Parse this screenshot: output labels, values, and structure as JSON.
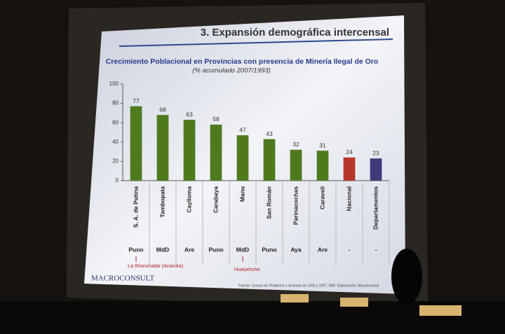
{
  "chart_data": {
    "type": "bar",
    "slide_title": "3. Expansión demográfica intercensal",
    "title": "Crecimiento Poblacional en Provincias con presencia de Minería Ilegal de Oro",
    "subtitle": "(% acumulado 2007/1993)",
    "categories": [
      "S. A. de Putina",
      "Tambopata",
      "Caylloma",
      "Carabaya",
      "Manu",
      "San Román",
      "Parinacochas",
      "Caravelí",
      "Nacional",
      "Departamentos"
    ],
    "regions": [
      "Puno",
      "MdD",
      "Are",
      "Puno",
      "MdD",
      "Puno",
      "Aya",
      "Are",
      "-",
      "-"
    ],
    "values": [
      77,
      68,
      63,
      58,
      47,
      43,
      32,
      31,
      24,
      23
    ],
    "colors": [
      "#4f7a1e",
      "#4f7a1e",
      "#4f7a1e",
      "#4f7a1e",
      "#4f7a1e",
      "#4f7a1e",
      "#4f7a1e",
      "#4f7a1e",
      "#b8352a",
      "#3f3a7a"
    ],
    "ylim": [
      0,
      100
    ],
    "yticks": [
      0,
      20,
      40,
      60,
      80,
      100
    ],
    "grid": false,
    "annotations": [
      "La Rinconada (Ananea)",
      "Huepetuhe"
    ],
    "logo": "MACROCONSULT",
    "source": "Fuente: Censos de Población y Vivienda de 1993 y 2007, INEI. Elaboración: Macroconsult"
  }
}
